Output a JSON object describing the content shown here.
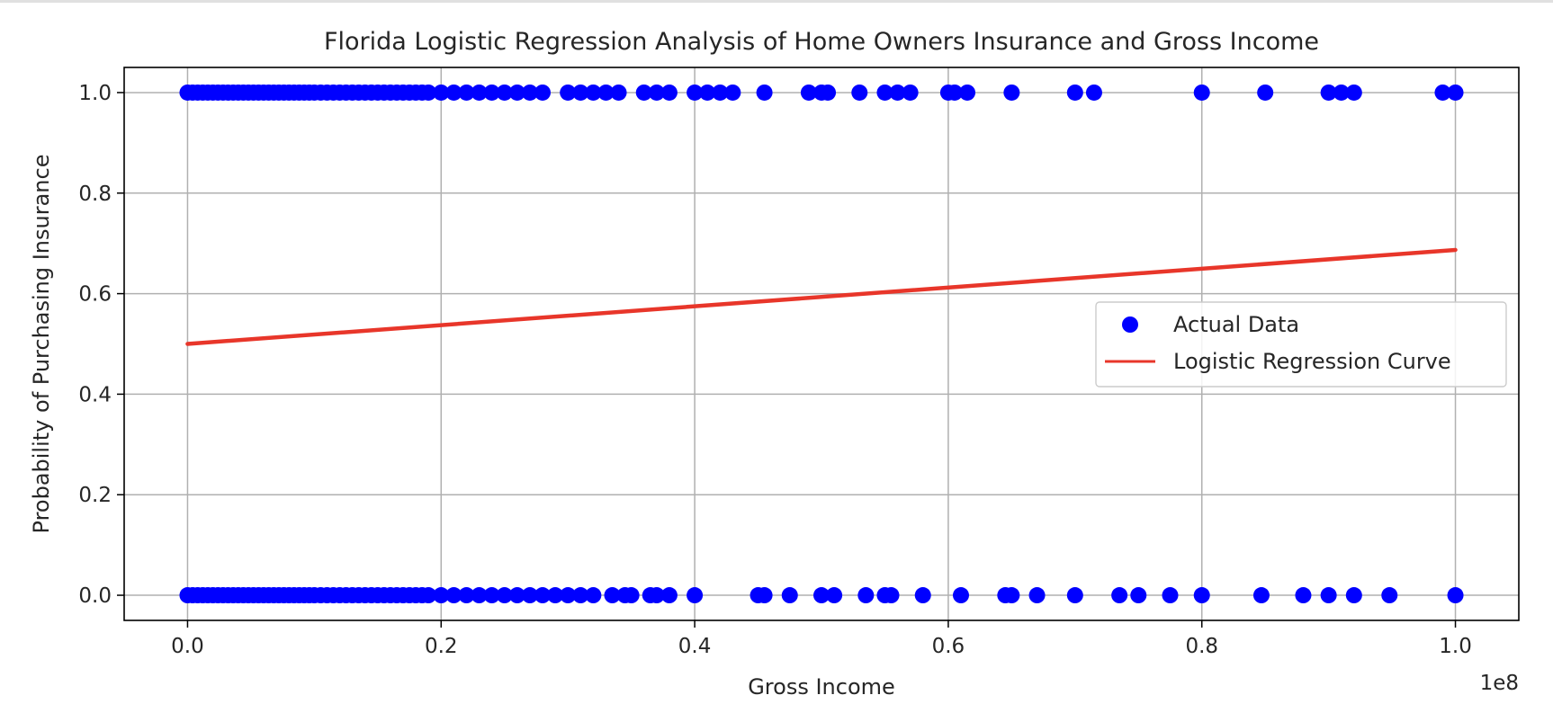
{
  "chart_data": {
    "type": "scatter",
    "title": "Florida Logistic Regression Analysis of Home Owners Insurance and Gross Income",
    "xlabel": "Gross Income",
    "ylabel": "Probability of Purchasing Insurance",
    "x_offset_label": "1e8",
    "x_scale": 100000000,
    "xlim": [
      -0.05,
      1.05
    ],
    "ylim": [
      -0.05,
      1.05
    ],
    "xticks": [
      0.0,
      0.2,
      0.4,
      0.6,
      0.8,
      1.0
    ],
    "xtick_labels": [
      "0.0",
      "0.2",
      "0.4",
      "0.6",
      "0.8",
      "1.0"
    ],
    "yticks": [
      0.0,
      0.2,
      0.4,
      0.6,
      0.8,
      1.0
    ],
    "ytick_labels": [
      "0.0",
      "0.2",
      "0.4",
      "0.6",
      "0.8",
      "1.0"
    ],
    "grid": true,
    "legend_position": "center-right",
    "series": [
      {
        "name": "Actual Data",
        "kind": "scatter",
        "color": "#0000ff",
        "points_y1": [
          0.0,
          0.004,
          0.008,
          0.012,
          0.016,
          0.02,
          0.024,
          0.028,
          0.032,
          0.036,
          0.04,
          0.044,
          0.048,
          0.052,
          0.056,
          0.06,
          0.064,
          0.068,
          0.072,
          0.076,
          0.08,
          0.084,
          0.088,
          0.092,
          0.096,
          0.1,
          0.105,
          0.11,
          0.115,
          0.12,
          0.125,
          0.13,
          0.135,
          0.14,
          0.145,
          0.15,
          0.155,
          0.16,
          0.165,
          0.17,
          0.175,
          0.18,
          0.185,
          0.19,
          0.2,
          0.21,
          0.22,
          0.23,
          0.24,
          0.25,
          0.26,
          0.27,
          0.28,
          0.3,
          0.31,
          0.32,
          0.33,
          0.34,
          0.36,
          0.37,
          0.38,
          0.4,
          0.41,
          0.42,
          0.43,
          0.455,
          0.49,
          0.5,
          0.505,
          0.53,
          0.55,
          0.56,
          0.57,
          0.6,
          0.605,
          0.615,
          0.65,
          0.7,
          0.715,
          0.8,
          0.85,
          0.9,
          0.91,
          0.92,
          0.99,
          1.0
        ],
        "points_y0": [
          0.0,
          0.004,
          0.008,
          0.012,
          0.016,
          0.02,
          0.024,
          0.028,
          0.032,
          0.036,
          0.04,
          0.044,
          0.048,
          0.052,
          0.056,
          0.06,
          0.064,
          0.068,
          0.072,
          0.076,
          0.08,
          0.084,
          0.088,
          0.092,
          0.096,
          0.1,
          0.105,
          0.11,
          0.115,
          0.12,
          0.125,
          0.13,
          0.135,
          0.14,
          0.145,
          0.15,
          0.155,
          0.16,
          0.165,
          0.17,
          0.175,
          0.18,
          0.185,
          0.19,
          0.2,
          0.21,
          0.22,
          0.23,
          0.24,
          0.25,
          0.26,
          0.27,
          0.28,
          0.29,
          0.3,
          0.31,
          0.32,
          0.335,
          0.345,
          0.35,
          0.365,
          0.37,
          0.38,
          0.4,
          0.45,
          0.455,
          0.475,
          0.5,
          0.51,
          0.535,
          0.55,
          0.555,
          0.58,
          0.61,
          0.645,
          0.65,
          0.67,
          0.7,
          0.735,
          0.75,
          0.775,
          0.8,
          0.847,
          0.88,
          0.9,
          0.92,
          0.948,
          1.0
        ]
      },
      {
        "name": "Logistic Regression Curve",
        "kind": "line",
        "color": "#e8362a",
        "x": [
          0.0,
          1.0
        ],
        "y": [
          0.5,
          0.687
        ]
      }
    ]
  }
}
